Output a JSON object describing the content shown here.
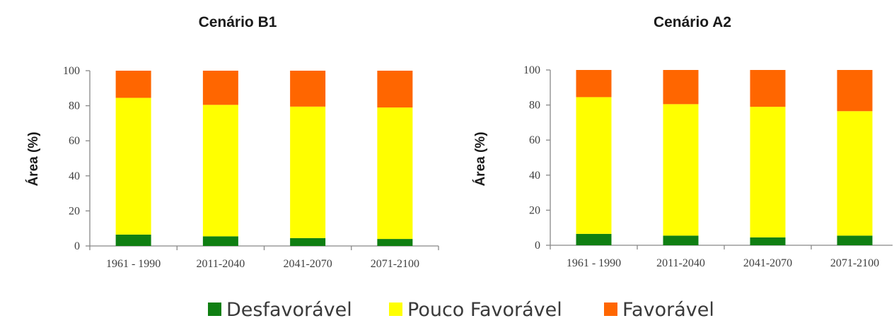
{
  "legend": {
    "items": [
      {
        "label": "Desfavorável",
        "color": "#0f7f12"
      },
      {
        "label": "Pouco Favorável",
        "color": "#ffff00"
      },
      {
        "label": "Favorável",
        "color": "#ff6600"
      }
    ]
  },
  "chart_data": [
    {
      "type": "bar",
      "stacked": true,
      "title": "Cenário B1",
      "xlabel": "",
      "ylabel": "Área (%)",
      "ylim": [
        0,
        100
      ],
      "yticks": [
        0,
        20,
        40,
        60,
        80,
        100
      ],
      "categories": [
        "1961 - 1990",
        "2011-2040",
        "2041-2070",
        "2071-2100"
      ],
      "series": [
        {
          "name": "Desfavorável",
          "color": "#0f7f12",
          "values": [
            6.5,
            5.5,
            4.5,
            4
          ]
        },
        {
          "name": "Pouco Favorável",
          "color": "#ffff00",
          "values": [
            78,
            75,
            75,
            75
          ]
        },
        {
          "name": "Favorável",
          "color": "#ff6600",
          "values": [
            15.5,
            19.5,
            20.5,
            21
          ]
        }
      ],
      "grid": false,
      "legend": "bottom"
    },
    {
      "type": "bar",
      "stacked": true,
      "title": "Cenário A2",
      "xlabel": "",
      "ylabel": "Área (%)",
      "ylim": [
        0,
        100
      ],
      "yticks": [
        0,
        20,
        40,
        60,
        80,
        100
      ],
      "categories": [
        "1961 - 1990",
        "2011-2040",
        "2041-2070",
        "2071-2100"
      ],
      "series": [
        {
          "name": "Desfavorável",
          "color": "#0f7f12",
          "values": [
            6.5,
            5.5,
            4.5,
            5.5
          ]
        },
        {
          "name": "Pouco Favorável",
          "color": "#ffff00",
          "values": [
            78,
            75,
            74.5,
            71
          ]
        },
        {
          "name": "Favorável",
          "color": "#ff6600",
          "values": [
            15.5,
            19.5,
            21,
            23.5
          ]
        }
      ],
      "grid": false,
      "legend": "bottom"
    }
  ]
}
